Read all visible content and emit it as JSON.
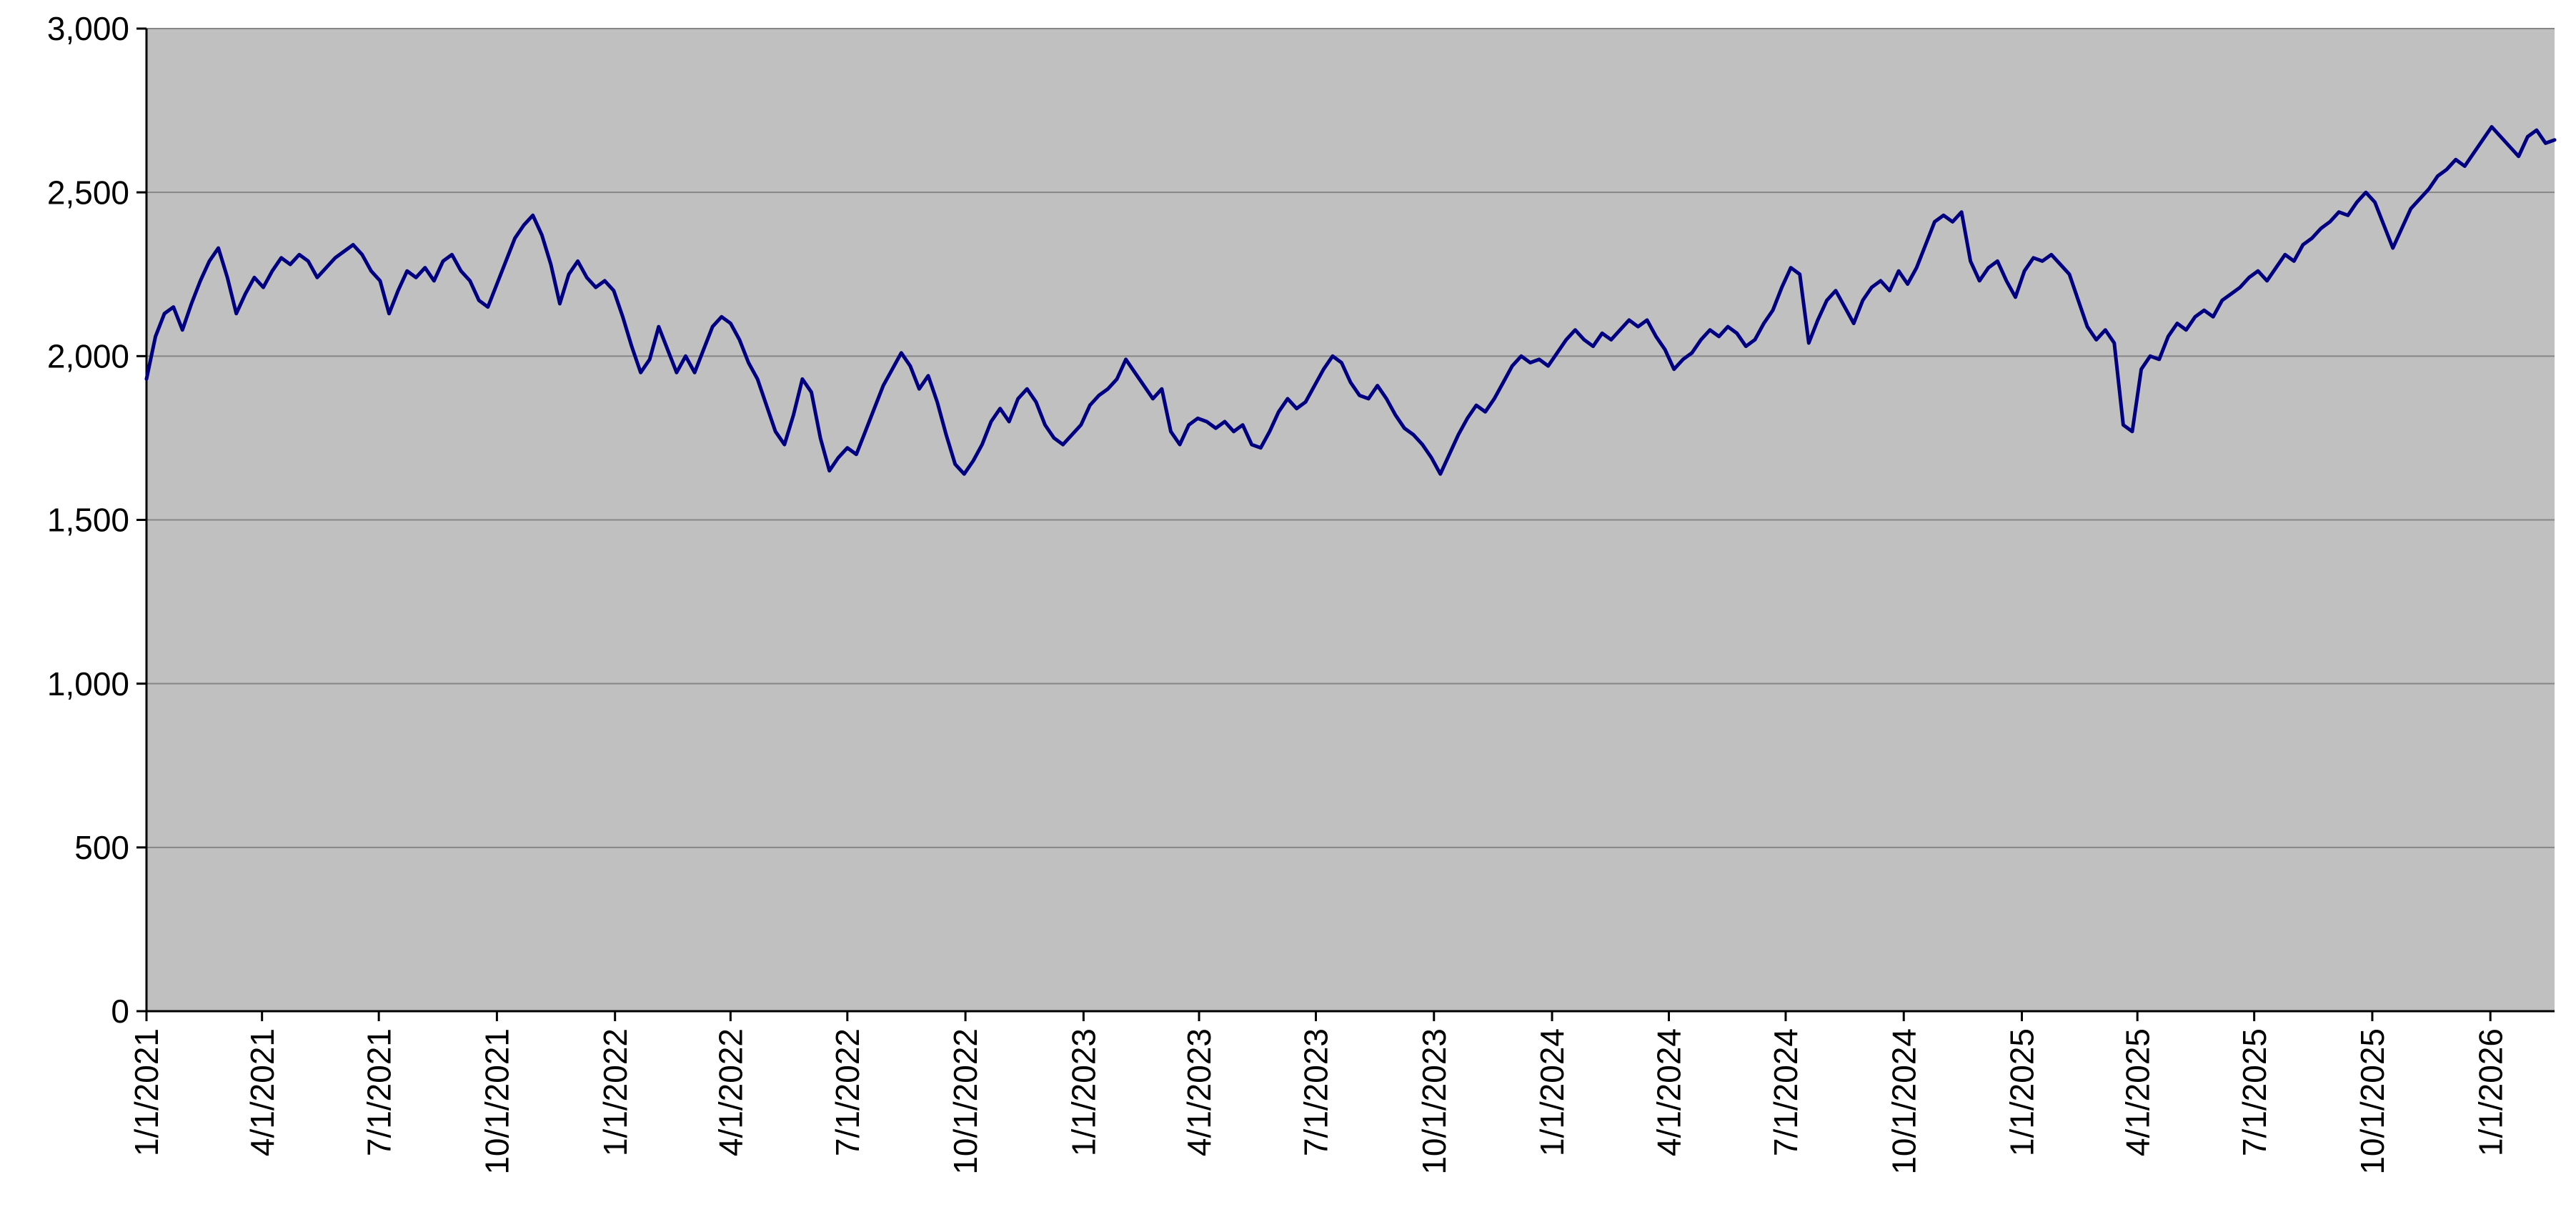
{
  "chart_data": {
    "type": "line",
    "title": "",
    "legend": "none",
    "grid": true,
    "colors": {
      "page_bg": "#ffffff",
      "plot_bg": "#c0c0c0",
      "grid": "#868686",
      "axis": "#000000",
      "text": "#000000",
      "line": "#000080"
    },
    "x_axis": {
      "start_date": "1/1/2021",
      "interval_days": 7,
      "tick_labels": [
        "1/1/2021",
        "4/1/2021",
        "7/1/2021",
        "10/1/2021",
        "1/1/2022",
        "4/1/2022",
        "7/1/2022",
        "10/1/2022",
        "1/1/2023",
        "4/1/2023",
        "7/1/2023",
        "10/1/2023",
        "1/1/2024",
        "4/1/2024",
        "7/1/2024",
        "10/1/2024",
        "1/1/2025",
        "4/1/2025",
        "7/1/2025",
        "10/1/2025",
        "1/1/2026"
      ]
    },
    "y_axis": {
      "min": 0,
      "max": 3000,
      "ticks": [
        0,
        500,
        1000,
        1500,
        2000,
        2500,
        3000
      ],
      "tick_labels": [
        "0",
        "500",
        "1,000",
        "1,500",
        "2,000",
        "2,500",
        "3,000"
      ]
    },
    "series": [
      {
        "color": "#000080",
        "values": [
          1930,
          2060,
          2130,
          2150,
          2080,
          2160,
          2230,
          2290,
          2330,
          2240,
          2130,
          2190,
          2240,
          2210,
          2260,
          2300,
          2280,
          2310,
          2290,
          2240,
          2270,
          2300,
          2320,
          2340,
          2310,
          2260,
          2230,
          2130,
          2200,
          2260,
          2240,
          2270,
          2230,
          2290,
          2310,
          2260,
          2230,
          2170,
          2150,
          2220,
          2290,
          2360,
          2400,
          2430,
          2370,
          2280,
          2160,
          2250,
          2290,
          2240,
          2210,
          2230,
          2200,
          2120,
          2030,
          1950,
          1990,
          2090,
          2020,
          1950,
          2000,
          1950,
          2020,
          2090,
          2120,
          2100,
          2050,
          1980,
          1930,
          1850,
          1770,
          1730,
          1820,
          1930,
          1890,
          1750,
          1650,
          1690,
          1720,
          1700,
          1770,
          1840,
          1910,
          1960,
          2010,
          1970,
          1900,
          1940,
          1860,
          1760,
          1670,
          1640,
          1680,
          1730,
          1800,
          1840,
          1800,
          1870,
          1900,
          1860,
          1790,
          1750,
          1730,
          1760,
          1790,
          1850,
          1880,
          1900,
          1930,
          1990,
          1950,
          1910,
          1870,
          1900,
          1770,
          1730,
          1790,
          1810,
          1800,
          1780,
          1800,
          1770,
          1790,
          1730,
          1720,
          1770,
          1830,
          1870,
          1840,
          1860,
          1910,
          1960,
          2000,
          1980,
          1920,
          1880,
          1870,
          1910,
          1870,
          1820,
          1780,
          1760,
          1730,
          1690,
          1640,
          1700,
          1760,
          1810,
          1850,
          1830,
          1870,
          1920,
          1970,
          2000,
          1980,
          1990,
          1970,
          2010,
          2050,
          2080,
          2050,
          2030,
          2070,
          2050,
          2080,
          2110,
          2090,
          2110,
          2060,
          2020,
          1960,
          1990,
          2010,
          2050,
          2080,
          2060,
          2090,
          2070,
          2030,
          2050,
          2100,
          2140,
          2210,
          2270,
          2250,
          2040,
          2110,
          2170,
          2200,
          2150,
          2100,
          2170,
          2210,
          2230,
          2200,
          2260,
          2220,
          2270,
          2340,
          2410,
          2430,
          2410,
          2440,
          2290,
          2230,
          2270,
          2290,
          2230,
          2180,
          2260,
          2300,
          2290,
          2310,
          2280,
          2250,
          2170,
          2090,
          2050,
          2080,
          2040,
          1790,
          1770,
          1960,
          2000,
          1990,
          2060,
          2100,
          2080,
          2120,
          2140,
          2120,
          2170,
          2190,
          2210,
          2240,
          2260,
          2230,
          2270,
          2310,
          2290,
          2340,
          2360,
          2390,
          2410,
          2440,
          2430,
          2470,
          2500,
          2470,
          2400,
          2330,
          2390,
          2450,
          2480,
          2510,
          2550,
          2570,
          2600,
          2580,
          2620,
          2660,
          2700,
          2670,
          2640,
          2610,
          2670,
          2690,
          2650,
          2660
        ]
      }
    ]
  }
}
